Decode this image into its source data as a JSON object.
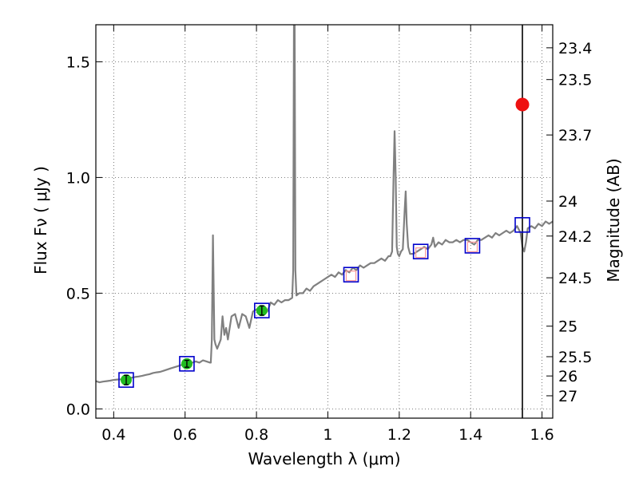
{
  "chart_data": {
    "type": "scatter",
    "title": "",
    "xlabel": "Wavelength  λ (μm)",
    "ylabel": "Flux  Fν  ( μJy )",
    "y2label": "Magnitude (AB)",
    "xlim": [
      0.35,
      1.63
    ],
    "ylim": [
      -0.04,
      1.66
    ],
    "grid": true,
    "x_ticks": [
      {
        "value": 0.4,
        "label": "0.4"
      },
      {
        "value": 0.6,
        "label": "0.6"
      },
      {
        "value": 0.8,
        "label": "0.8"
      },
      {
        "value": 1.0,
        "label": "1"
      },
      {
        "value": 1.2,
        "label": "1.2"
      },
      {
        "value": 1.4,
        "label": "1.4"
      },
      {
        "value": 1.6,
        "label": "1.6"
      }
    ],
    "y_ticks": [
      {
        "value": 0.0,
        "label": "0.0"
      },
      {
        "value": 0.5,
        "label": "0.5"
      },
      {
        "value": 1.0,
        "label": "1.0"
      },
      {
        "value": 1.5,
        "label": "1.5"
      }
    ],
    "y2_ticks": [
      {
        "label": "23.4",
        "flux": 1.5604
      },
      {
        "label": "23.5",
        "flux": 1.4231
      },
      {
        "label": "23.7",
        "flux": 1.1837
      },
      {
        "label": "24",
        "flux": 0.898
      },
      {
        "label": "24.2",
        "flux": 0.7469
      },
      {
        "label": "24.5",
        "flux": 0.5666
      },
      {
        "label": "25",
        "flux": 0.3575
      },
      {
        "label": "25.5",
        "flux": 0.2256
      },
      {
        "label": "26",
        "flux": 0.1423
      },
      {
        "label": "27",
        "flux": 0.0567
      }
    ],
    "vline_x": 1.545,
    "spectrum": [
      [
        0.35,
        0.12
      ],
      [
        0.36,
        0.115
      ],
      [
        0.37,
        0.118
      ],
      [
        0.38,
        0.12
      ],
      [
        0.39,
        0.122
      ],
      [
        0.4,
        0.125
      ],
      [
        0.41,
        0.127
      ],
      [
        0.42,
        0.128
      ],
      [
        0.43,
        0.13
      ],
      [
        0.44,
        0.132
      ],
      [
        0.45,
        0.135
      ],
      [
        0.46,
        0.138
      ],
      [
        0.47,
        0.14
      ],
      [
        0.48,
        0.143
      ],
      [
        0.49,
        0.147
      ],
      [
        0.5,
        0.15
      ],
      [
        0.51,
        0.155
      ],
      [
        0.52,
        0.158
      ],
      [
        0.53,
        0.16
      ],
      [
        0.54,
        0.165
      ],
      [
        0.55,
        0.17
      ],
      [
        0.56,
        0.175
      ],
      [
        0.57,
        0.18
      ],
      [
        0.58,
        0.185
      ],
      [
        0.59,
        0.19
      ],
      [
        0.6,
        0.195
      ],
      [
        0.61,
        0.198
      ],
      [
        0.62,
        0.2
      ],
      [
        0.63,
        0.205
      ],
      [
        0.64,
        0.2
      ],
      [
        0.65,
        0.21
      ],
      [
        0.66,
        0.205
      ],
      [
        0.67,
        0.2
      ],
      [
        0.672,
        0.2
      ],
      [
        0.675,
        0.3
      ],
      [
        0.678,
        0.75
      ],
      [
        0.682,
        0.3
      ],
      [
        0.685,
        0.28
      ],
      [
        0.69,
        0.26
      ],
      [
        0.695,
        0.28
      ],
      [
        0.7,
        0.3
      ],
      [
        0.705,
        0.4
      ],
      [
        0.71,
        0.32
      ],
      [
        0.715,
        0.35
      ],
      [
        0.72,
        0.3
      ],
      [
        0.73,
        0.4
      ],
      [
        0.74,
        0.41
      ],
      [
        0.75,
        0.35
      ],
      [
        0.76,
        0.41
      ],
      [
        0.77,
        0.4
      ],
      [
        0.78,
        0.35
      ],
      [
        0.79,
        0.42
      ],
      [
        0.8,
        0.43
      ],
      [
        0.81,
        0.42
      ],
      [
        0.82,
        0.43
      ],
      [
        0.83,
        0.42
      ],
      [
        0.84,
        0.46
      ],
      [
        0.85,
        0.45
      ],
      [
        0.86,
        0.47
      ],
      [
        0.87,
        0.46
      ],
      [
        0.88,
        0.47
      ],
      [
        0.89,
        0.47
      ],
      [
        0.9,
        0.48
      ],
      [
        0.903,
        0.6
      ],
      [
        0.905,
        1.66
      ],
      [
        0.907,
        1.66
      ],
      [
        0.909,
        0.6
      ],
      [
        0.912,
        0.49
      ],
      [
        0.92,
        0.5
      ],
      [
        0.93,
        0.5
      ],
      [
        0.94,
        0.52
      ],
      [
        0.95,
        0.51
      ],
      [
        0.96,
        0.53
      ],
      [
        0.97,
        0.54
      ],
      [
        0.98,
        0.55
      ],
      [
        0.99,
        0.56
      ],
      [
        1.0,
        0.57
      ],
      [
        1.01,
        0.58
      ],
      [
        1.02,
        0.57
      ],
      [
        1.03,
        0.59
      ],
      [
        1.04,
        0.58
      ],
      [
        1.05,
        0.6
      ],
      [
        1.06,
        0.59
      ],
      [
        1.07,
        0.61
      ],
      [
        1.08,
        0.6
      ],
      [
        1.09,
        0.62
      ],
      [
        1.1,
        0.61
      ],
      [
        1.11,
        0.62
      ],
      [
        1.12,
        0.63
      ],
      [
        1.13,
        0.63
      ],
      [
        1.14,
        0.64
      ],
      [
        1.15,
        0.65
      ],
      [
        1.16,
        0.64
      ],
      [
        1.17,
        0.66
      ],
      [
        1.175,
        0.66
      ],
      [
        1.18,
        0.68
      ],
      [
        1.184,
        1.0
      ],
      [
        1.187,
        1.2
      ],
      [
        1.19,
        1.0
      ],
      [
        1.193,
        0.7
      ],
      [
        1.196,
        0.67
      ],
      [
        1.2,
        0.66
      ],
      [
        1.205,
        0.68
      ],
      [
        1.21,
        0.69
      ],
      [
        1.215,
        0.85
      ],
      [
        1.218,
        0.94
      ],
      [
        1.221,
        0.8
      ],
      [
        1.225,
        0.7
      ],
      [
        1.23,
        0.67
      ],
      [
        1.24,
        0.67
      ],
      [
        1.25,
        0.68
      ],
      [
        1.26,
        0.69
      ],
      [
        1.27,
        0.7
      ],
      [
        1.28,
        0.69
      ],
      [
        1.29,
        0.71
      ],
      [
        1.295,
        0.74
      ],
      [
        1.3,
        0.7
      ],
      [
        1.31,
        0.72
      ],
      [
        1.32,
        0.71
      ],
      [
        1.33,
        0.73
      ],
      [
        1.34,
        0.72
      ],
      [
        1.35,
        0.72
      ],
      [
        1.36,
        0.73
      ],
      [
        1.37,
        0.72
      ],
      [
        1.38,
        0.73
      ],
      [
        1.39,
        0.73
      ],
      [
        1.4,
        0.72
      ],
      [
        1.41,
        0.71
      ],
      [
        1.42,
        0.73
      ],
      [
        1.43,
        0.73
      ],
      [
        1.44,
        0.74
      ],
      [
        1.45,
        0.75
      ],
      [
        1.46,
        0.74
      ],
      [
        1.47,
        0.76
      ],
      [
        1.48,
        0.75
      ],
      [
        1.49,
        0.76
      ],
      [
        1.5,
        0.77
      ],
      [
        1.51,
        0.76
      ],
      [
        1.52,
        0.77
      ],
      [
        1.53,
        0.79
      ],
      [
        1.54,
        0.76
      ],
      [
        1.545,
        0.7
      ],
      [
        1.55,
        0.68
      ],
      [
        1.555,
        0.72
      ],
      [
        1.56,
        0.78
      ],
      [
        1.57,
        0.79
      ],
      [
        1.58,
        0.78
      ],
      [
        1.59,
        0.8
      ],
      [
        1.6,
        0.79
      ],
      [
        1.61,
        0.81
      ],
      [
        1.62,
        0.8
      ],
      [
        1.63,
        0.81
      ]
    ],
    "series": [
      {
        "marker": "open-square",
        "color": "#0000cc",
        "points": [
          [
            0.435,
            0.125
          ],
          [
            0.605,
            0.195
          ],
          [
            0.815,
            0.425
          ],
          [
            1.065,
            0.58
          ],
          [
            1.26,
            0.68
          ],
          [
            1.405,
            0.705
          ],
          [
            1.545,
            0.795
          ]
        ]
      },
      {
        "marker": "filled-circle-errorbar",
        "color": "#22bb22",
        "points": [
          [
            0.435,
            0.125,
            0.02
          ],
          [
            0.605,
            0.195,
            0.015
          ],
          [
            0.815,
            0.425,
            0.02
          ]
        ]
      },
      {
        "marker": "open-square-small",
        "color": "#ff9999",
        "points": [
          [
            1.065,
            0.575
          ],
          [
            1.26,
            0.675
          ],
          [
            1.405,
            0.7
          ]
        ]
      },
      {
        "marker": "filled-circle",
        "color": "#ee1111",
        "points": [
          [
            1.545,
            1.315
          ]
        ]
      }
    ],
    "colors": {
      "spectrum": "#808080",
      "vline": "#000000",
      "grid": "#555555"
    }
  }
}
